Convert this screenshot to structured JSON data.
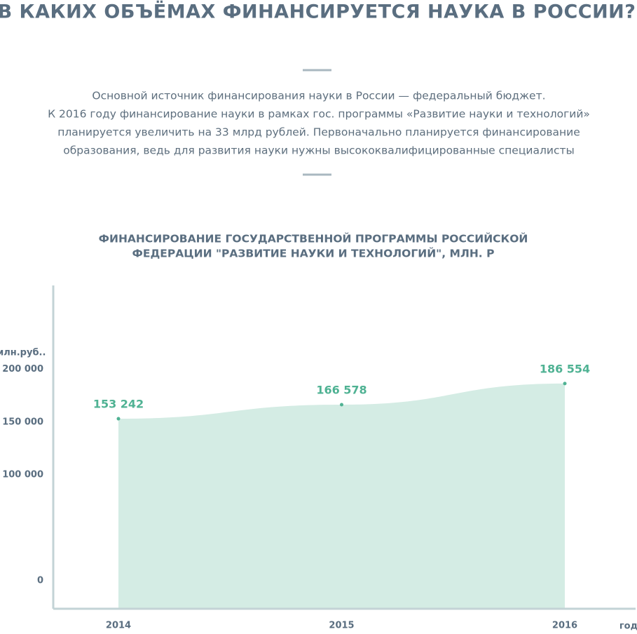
{
  "title": "В КАКИХ ОБЪЁМАХ ФИНАНСИРУЕТСЯ НАУКА В РОССИИ?",
  "intro": [
    "Основной источник финансирования науки в России — федеральный бюджет.",
    "К 2016 году финансирование науки в рамках гос. программы «Развитие науки и технологий»",
    "планируется увеличить на 33 млрд рублей. Первоначально планируется финансирование",
    "образования, ведь для развития науки нужны высококвалифицированные специалисты"
  ],
  "chart_data": {
    "type": "area",
    "title": [
      "ФИНАНСИРОВАНИЕ ГОСУДАРСТВЕННОЙ ПРОГРАММЫ РОССИЙСКОЙ",
      "ФЕДЕРАЦИИ \"РАЗВИТИЕ НАУКИ И ТЕХНОЛОГИЙ\", МЛН. Р"
    ],
    "y_label": "млн.руб..",
    "x_label": "год",
    "categories": [
      "2014",
      "2015",
      "2016"
    ],
    "values": [
      153242,
      166578,
      186554
    ],
    "value_labels": [
      "153 242",
      "166 578",
      "186 554"
    ],
    "color": "#d4ece4",
    "point_color": "#4fb293",
    "ylim": [
      -26667,
      279444
    ],
    "yticks": [
      {
        "value": 0,
        "label": "0"
      },
      {
        "value": 100000,
        "label": "100 000"
      },
      {
        "value": 150000,
        "label": "150 000"
      },
      {
        "value": 200000,
        "label": "200 000"
      }
    ]
  }
}
